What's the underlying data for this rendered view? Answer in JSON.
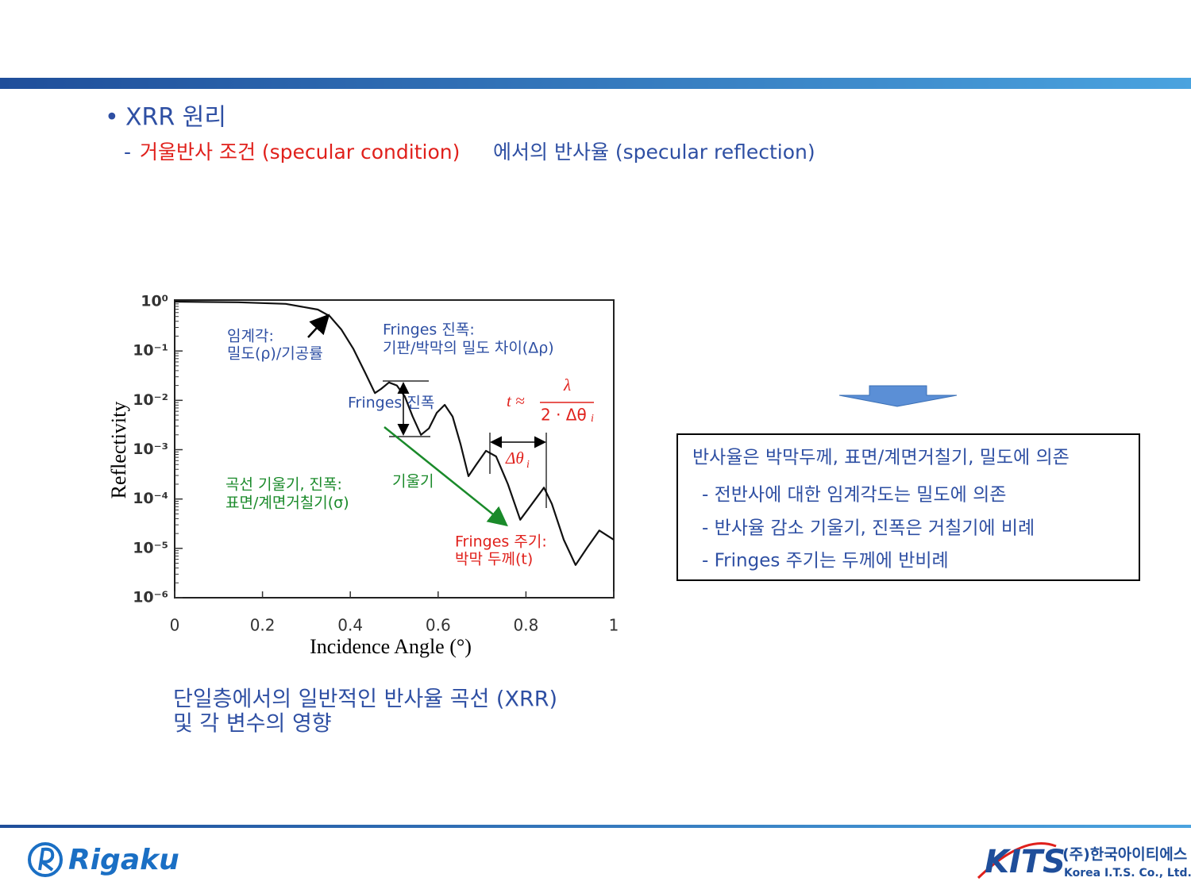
{
  "header": {
    "bullet": "•",
    "title": "XRR 원리",
    "subtitle_dash": "-",
    "subtitle_red": "거울반사 조건 (specular condition)",
    "subtitle_blue": "에서의 반사율 (specular reflection)"
  },
  "chart_data": {
    "type": "line",
    "x_label": "Incidence Angle (°)",
    "y_label": "Reflectivity",
    "x": [
      0,
      0.145,
      0.253,
      0.326,
      0.353,
      0.38,
      0.407,
      0.434,
      0.456,
      0.47,
      0.488,
      0.506,
      0.524,
      0.542,
      0.561,
      0.579,
      0.597,
      0.615,
      0.633,
      0.651,
      0.669,
      0.687,
      0.709,
      0.732,
      0.759,
      0.787,
      0.814,
      0.841,
      0.859,
      0.886,
      0.913,
      0.94,
      0.967,
      1.0
    ],
    "series": [
      {
        "color": "#111111",
        "values": [
          1.0,
          0.97,
          0.9,
          0.69,
          0.51,
          0.27,
          0.11,
          0.036,
          0.014,
          0.017,
          0.023,
          0.02,
          0.012,
          0.0047,
          0.002,
          0.0027,
          0.0056,
          0.0081,
          0.0047,
          0.0013,
          0.00029,
          0.0005,
          0.00095,
          0.00073,
          0.0002,
          3.8e-05,
          8e-05,
          0.00017,
          8e-05,
          1.5e-05,
          4.6e-06,
          1.05e-05,
          2.3e-05,
          1.5e-05
        ]
      }
    ],
    "xlim": [
      0,
      1
    ],
    "xticks": [
      0,
      0.2,
      0.4,
      0.6,
      0.8,
      1
    ],
    "ylim": [
      1e-06,
      1
    ],
    "log_y": true,
    "yticks": [
      {
        "value": 1,
        "label": "10⁰"
      },
      {
        "value": 0.1,
        "label": "10⁻¹"
      },
      {
        "value": 0.01,
        "label": "10⁻²"
      },
      {
        "value": 0.001,
        "label": "10⁻³"
      },
      {
        "value": 0.0001,
        "label": "10⁻⁴"
      },
      {
        "value": 1e-05,
        "label": "10⁻⁵"
      },
      {
        "value": 1e-06,
        "label": "10⁻⁶"
      }
    ],
    "grid": false,
    "annotations": [
      "임계각:",
      "밀도(ρ)/기공률",
      "Fringes 진폭:",
      "기판/박막의 밀도 차이(Δρ)",
      "Fringes 진폭",
      "곡선 기울기, 진폭:",
      "표면/계면거칠기(σ)",
      "기울기",
      "Fringes 주기:",
      "박막 두께(t)",
      "t ≈",
      "λ",
      "2 · Δθ",
      "i",
      "Δθ",
      "i"
    ]
  },
  "caption": [
    "단일층에서의 일반적인 반사율 곡선 (XRR)",
    "및 각 변수의 영향"
  ],
  "box": {
    "title": "반사율은 박막두께, 표면/계면거칠기, 밀도에 의존",
    "items": [
      "- 전반사에 대한 임계각도는 밀도에 의존",
      "- 반사율 감소 기울기, 진폭은 거칠기에 비례",
      "- Fringes 주기는 두께에 반비례"
    ]
  },
  "footer": {
    "left_logo": "Rigaku",
    "right_logo": "KITS",
    "right_korean": "(주)한국아이티에스",
    "right_english": "Korea I.T.S. Co., Ltd."
  }
}
